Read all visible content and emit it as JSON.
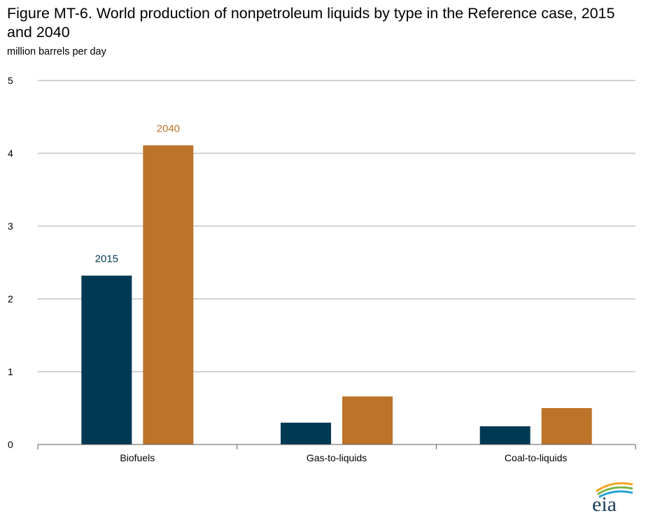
{
  "title": "Figure MT-6. World production of nonpetroleum liquids by type in the Reference case, 2015 and 2040",
  "units_label": "million barrels per day",
  "logo_text": "eia",
  "colors": {
    "series_2015": "#003953",
    "series_2040": "#bd732a",
    "grid": "#a6a6a6",
    "axis": "#595959"
  },
  "chart_data": {
    "type": "bar",
    "title": "Figure MT-6. World production of nonpetroleum liquids by type in the Reference case, 2015 and 2040",
    "ylabel": "million barrels per day",
    "xlabel": "",
    "categories": [
      "Biofuels",
      "Gas-to-liquids",
      "Coal-to-liquids"
    ],
    "series": [
      {
        "name": "2015",
        "values": [
          2.32,
          0.3,
          0.25
        ]
      },
      {
        "name": "2040",
        "values": [
          4.11,
          0.66,
          0.5
        ]
      }
    ],
    "ylim": [
      0,
      5
    ],
    "yticks": [
      0,
      1,
      2,
      3,
      4,
      5
    ],
    "grid": true,
    "legend": "direct labels above Biofuels bars"
  }
}
